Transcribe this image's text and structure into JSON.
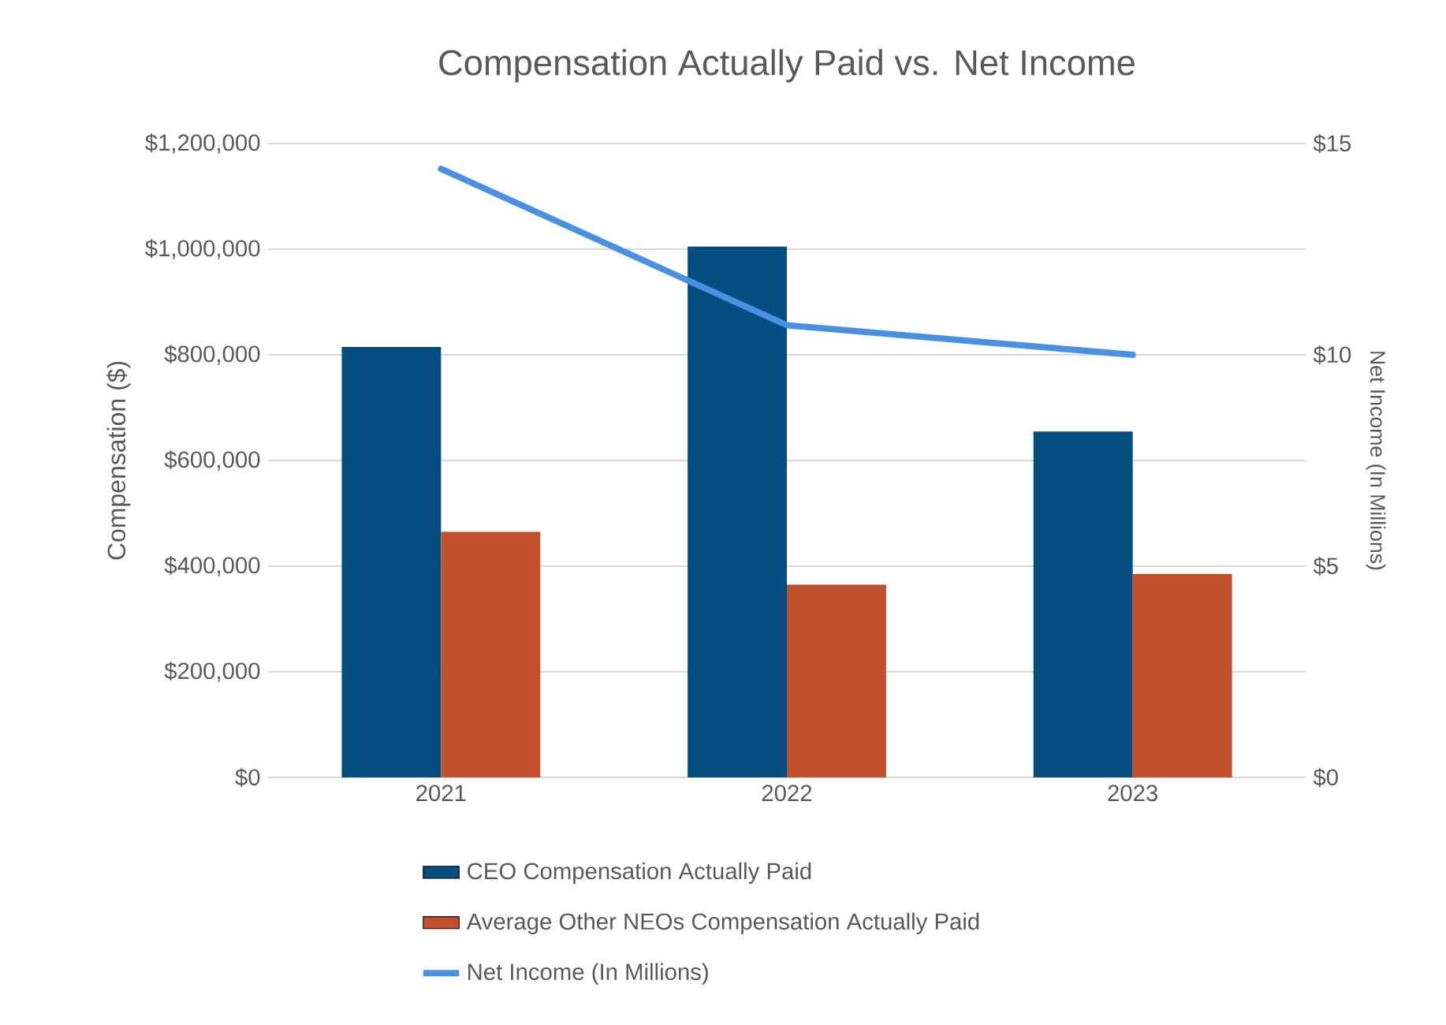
{
  "chart_data": {
    "type": "bar",
    "title": "Compensation Actually Paid vs. Net Income",
    "ylabel": "Compensation ($)",
    "y2label": "Net Income (In Millions)",
    "categories": [
      "2021",
      "2022",
      "2023"
    ],
    "series": [
      {
        "name": "CEO Compensation Actually Paid",
        "color": "#034e7f",
        "values": [
          815000,
          1005000,
          655000
        ]
      },
      {
        "name": "Average Other NEOs Compensation Actually Paid",
        "color": "#c0502e",
        "values": [
          465000,
          365000,
          385000
        ]
      },
      {
        "name": "Net Income (In Millions)",
        "type": "line",
        "axis": "y2",
        "color": "#4a90e2",
        "values": [
          14.4,
          10.7,
          10.0
        ]
      }
    ],
    "ylim": [
      0,
      1200000
    ],
    "yticks": [
      {
        "value": 0,
        "label": "$0"
      },
      {
        "value": 200000,
        "label": "$200,000"
      },
      {
        "value": 400000,
        "label": "$400,000"
      },
      {
        "value": 600000,
        "label": "$600,000"
      },
      {
        "value": 800000,
        "label": "$800,000"
      },
      {
        "value": 1000000,
        "label": "$1,000,000"
      },
      {
        "value": 1200000,
        "label": "$1,200,000"
      }
    ],
    "y2lim": [
      0,
      15
    ],
    "y2ticks": [
      {
        "value": 0,
        "label": "$0"
      },
      {
        "value": 5,
        "label": "$5"
      },
      {
        "value": 10,
        "label": "$10"
      },
      {
        "value": 15,
        "label": "$15"
      }
    ],
    "grid": "y",
    "legend": "bottom",
    "marker": "none",
    "line_style": "solid"
  }
}
